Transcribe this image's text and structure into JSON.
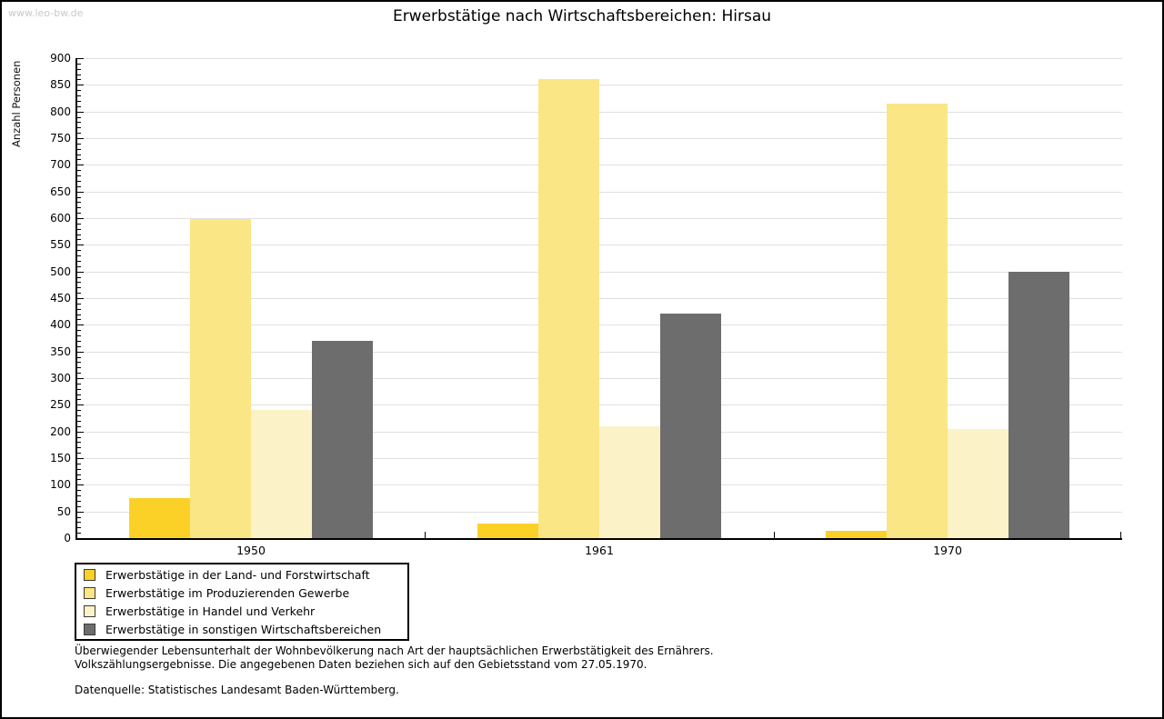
{
  "watermark": "www.leo-bw.de",
  "title": "Erwerbstätige nach Wirtschaftsbereichen: Hirsau",
  "footer": {
    "line1": "Überwiegender Lebensunterhalt der Wohnbevölkerung nach Art der hauptsächlichen Erwerbstätigkeit des Ernährers.",
    "line2": "Volkszählungsergebnisse. Die angegebenen Daten beziehen sich auf den Gebietsstand vom 27.05.1970.",
    "source": "Datenquelle: Statistisches Landesamt Baden-Württemberg."
  },
  "chart_data": {
    "type": "bar",
    "title": "Erwerbstätige nach Wirtschaftsbereichen: Hirsau",
    "xlabel": "",
    "ylabel": "Anzahl Personen",
    "categories": [
      "1950",
      "1961",
      "1970"
    ],
    "series": [
      {
        "name": "Erwerbstätige in der Land- und Forstwirtschaft",
        "color": "#FBD128",
        "values": [
          75,
          28,
          14
        ]
      },
      {
        "name": "Erwerbstätige im Produzierenden Gewerbe",
        "color": "#FBE685",
        "values": [
          598,
          861,
          815
        ]
      },
      {
        "name": "Erwerbstätige in Handel und Verkehr",
        "color": "#FBF3C7",
        "values": [
          241,
          210,
          205
        ]
      },
      {
        "name": "Erwerbstätige in sonstigen Wirtschaftsbereichen",
        "color": "#6D6D6D",
        "values": [
          370,
          421,
          500
        ]
      }
    ],
    "ylim": [
      0,
      900
    ],
    "yticks": [
      0,
      50,
      100,
      150,
      200,
      250,
      300,
      350,
      400,
      450,
      500,
      550,
      600,
      650,
      700,
      750,
      800,
      850,
      900
    ],
    "minor_tick_step": 10,
    "grid": true,
    "legend_position": "bottom-left",
    "colors": {
      "gridline": "#E0E0E0",
      "axis": "#000000",
      "watermark": "#C9C9C9"
    }
  }
}
